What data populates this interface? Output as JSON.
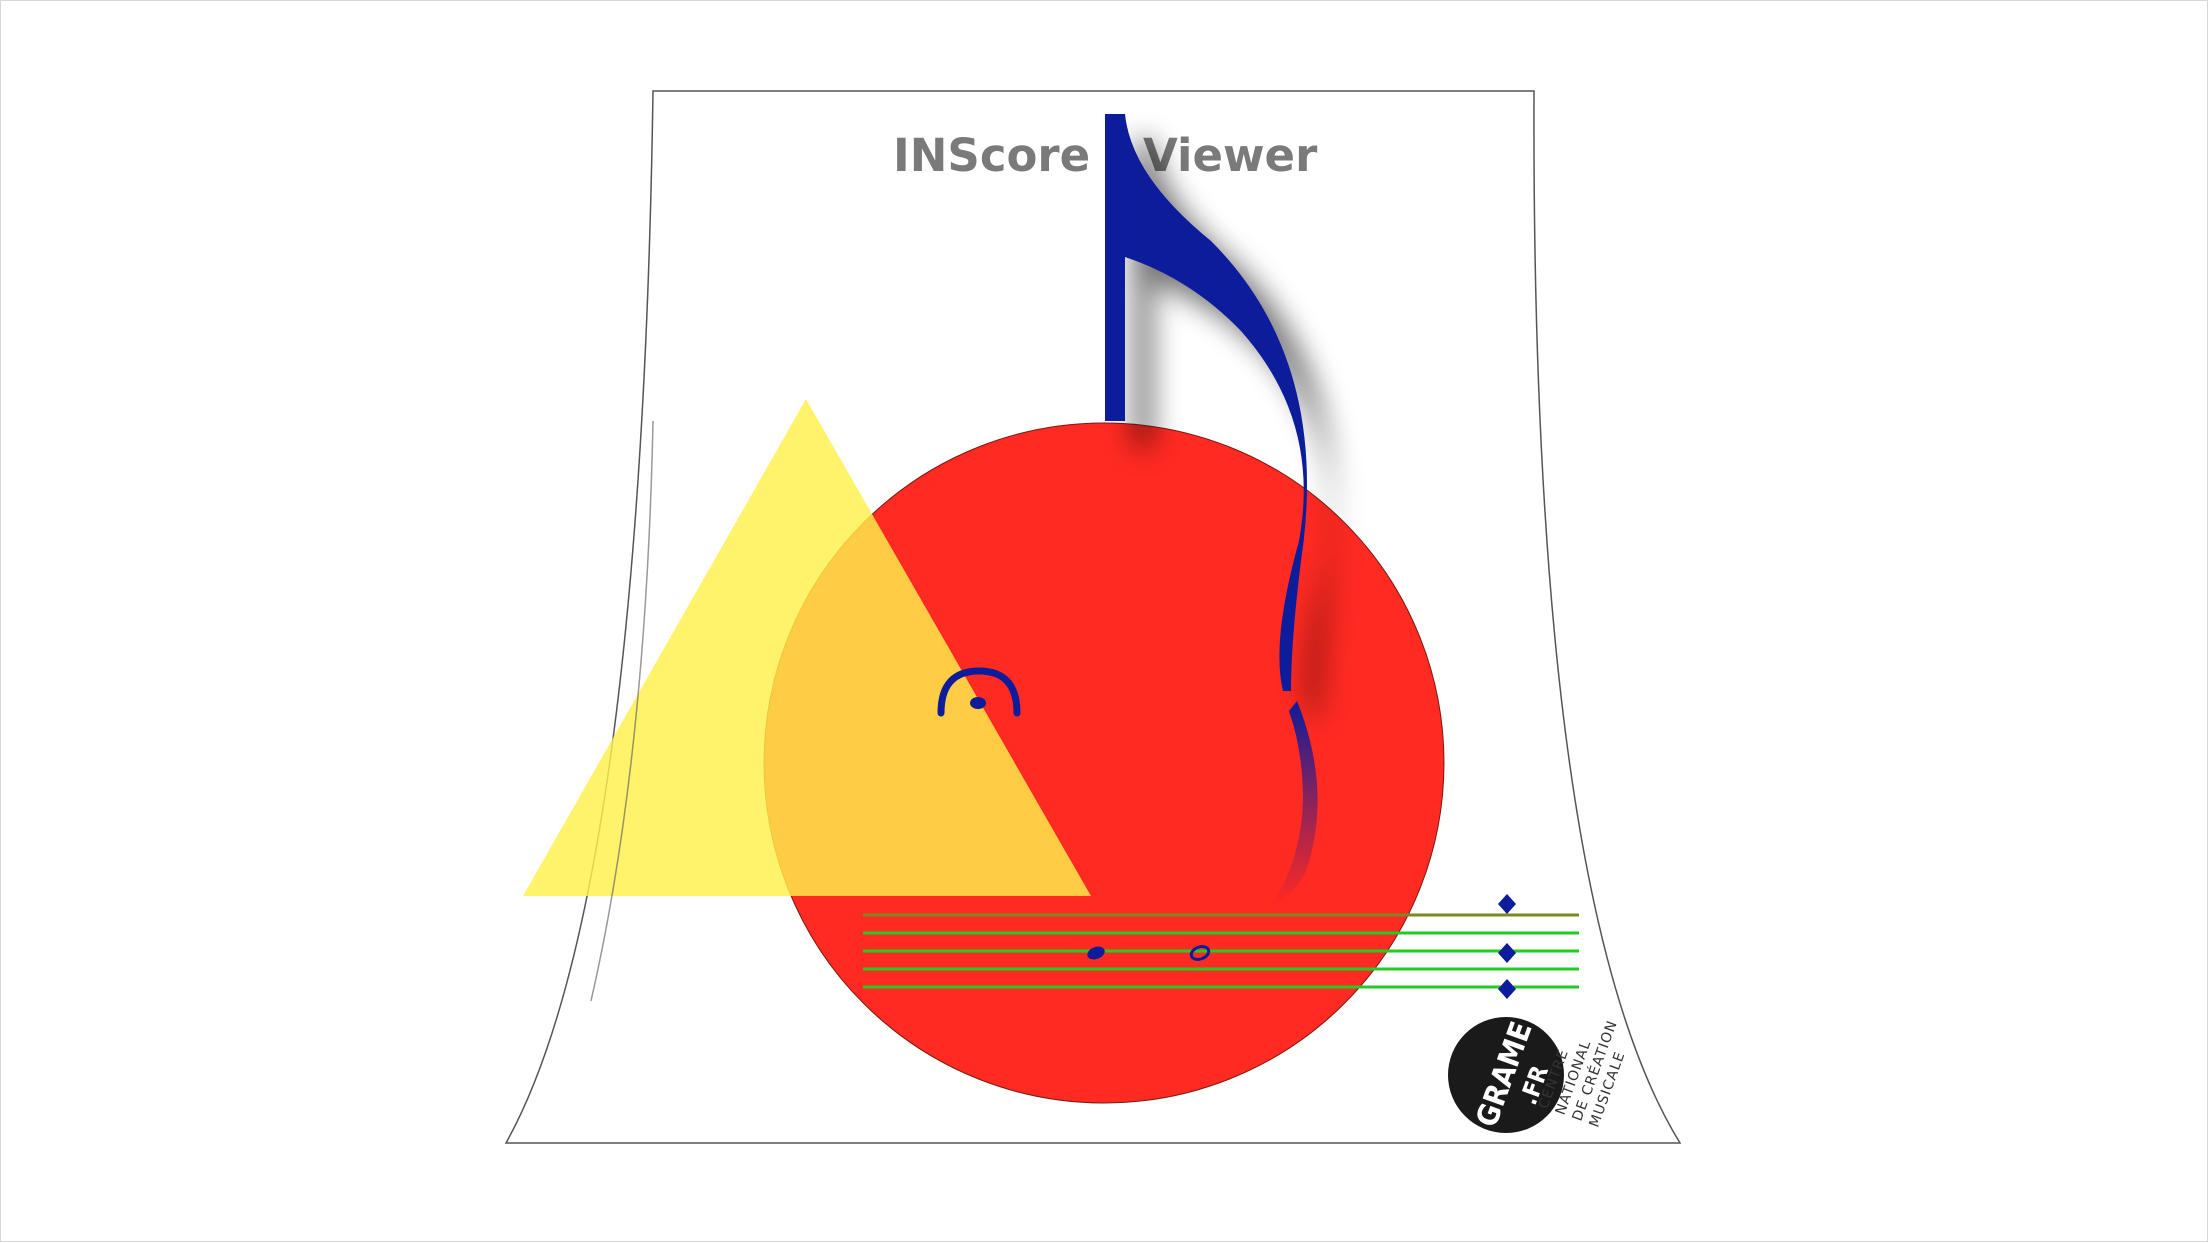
{
  "viewer": {
    "title_left": "INScore",
    "title_right": "Viewer"
  },
  "logo": {
    "main": "GRAME",
    "suffix": ".FR",
    "caption_lines": [
      "CENTRE",
      "NATIONAL",
      "DE CRÉATION",
      "MUSICALE"
    ]
  },
  "colors": {
    "circle": "#ff2a22",
    "triangle": "#fff04a",
    "note": "#0c1c9a",
    "staff": "#22cc22",
    "logo_bg": "#1a1a1a"
  },
  "icons": [
    "eighth-note-icon",
    "fermata-icon",
    "whole-note-icon",
    "diamond-icon"
  ]
}
